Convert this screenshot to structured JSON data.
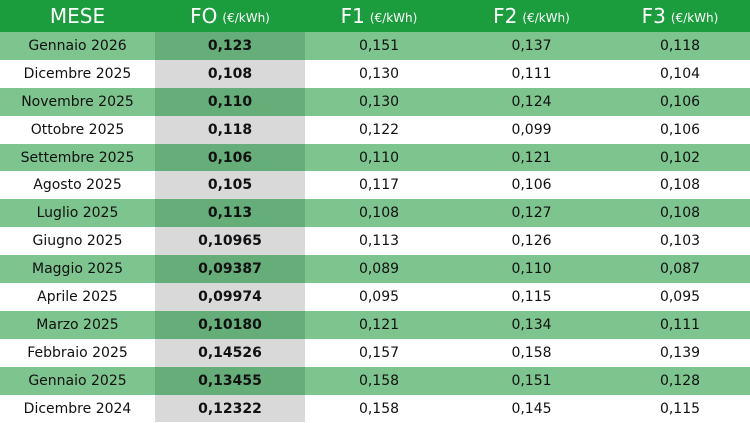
{
  "table": {
    "header": [
      {
        "main": "MESE"
      },
      {
        "main": "FO",
        "unit": "(€/kWh)"
      },
      {
        "main": "F1",
        "unit": "(€/kWh)"
      },
      {
        "main": "F2",
        "unit": "(€/kWh)"
      },
      {
        "main": "F3",
        "unit": "(€/kWh)"
      }
    ],
    "rows": [
      [
        "Gennaio 2026",
        "0,123",
        "0,151",
        "0,137",
        "0,118"
      ],
      [
        "Dicembre 2025",
        "0,108",
        "0,130",
        "0,111",
        "0,104"
      ],
      [
        "Novembre 2025",
        "0,110",
        "0,130",
        "0,124",
        "0,106"
      ],
      [
        "Ottobre 2025",
        "0,118",
        "0,122",
        "0,099",
        "0,106"
      ],
      [
        "Settembre 2025",
        "0,106",
        "0,110",
        "0,121",
        "0,102"
      ],
      [
        "Agosto 2025",
        "0,105",
        "0,117",
        "0,106",
        "0,108"
      ],
      [
        "Luglio 2025",
        "0,113",
        "0,108",
        "0,127",
        "0,108"
      ],
      [
        "Giugno 2025",
        "0,10965",
        "0,113",
        "0,126",
        "0,103"
      ],
      [
        "Maggio 2025",
        "0,09387",
        "0,089",
        "0,110",
        "0,087"
      ],
      [
        "Aprile 2025",
        "0,09974",
        "0,095",
        "0,115",
        "0,095"
      ],
      [
        "Marzo 2025",
        "0,10180",
        "0,121",
        "0,134",
        "0,111"
      ],
      [
        "Febbraio 2025",
        "0,14526",
        "0,157",
        "0,158",
        "0,139"
      ],
      [
        "Gennaio 2025",
        "0,13455",
        "0,158",
        "0,151",
        "0,128"
      ],
      [
        "Dicembre 2024",
        "0,12322",
        "0,158",
        "0,145",
        "0,115"
      ]
    ]
  }
}
